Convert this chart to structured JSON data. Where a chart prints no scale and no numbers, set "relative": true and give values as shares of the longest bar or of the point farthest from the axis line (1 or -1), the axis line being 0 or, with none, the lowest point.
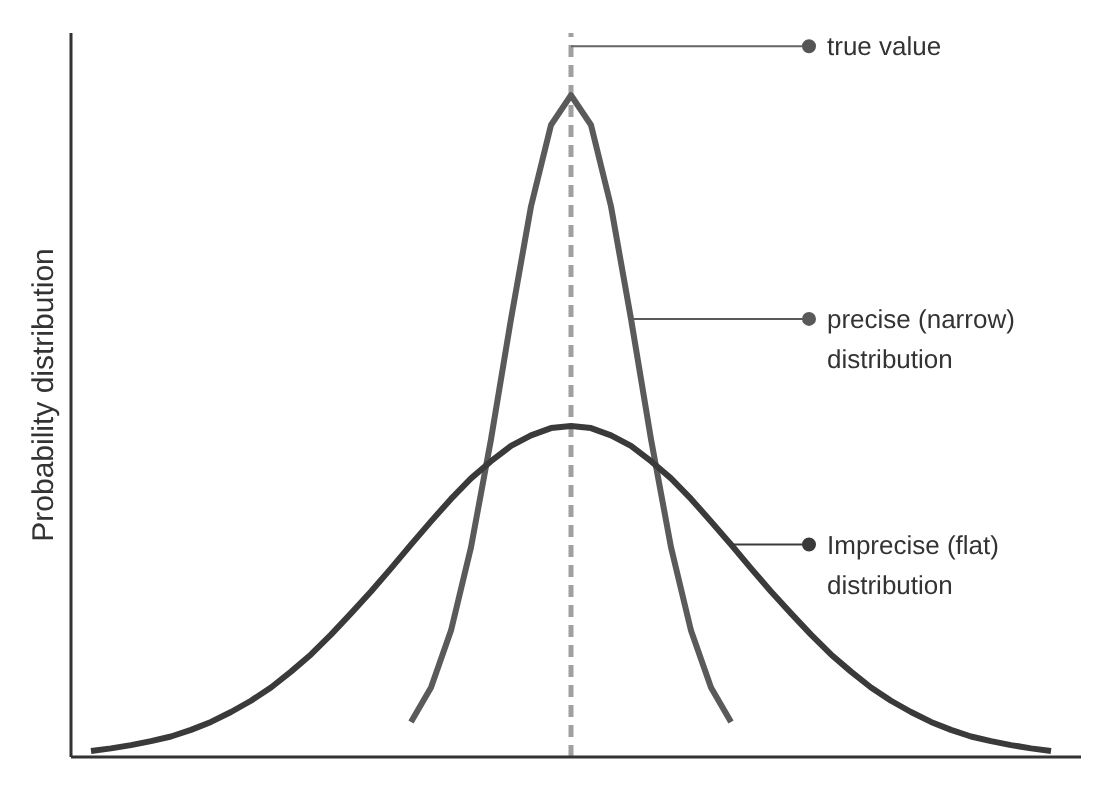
{
  "chart_data": {
    "type": "line",
    "relative": true,
    "ylabel": "Probability distribution",
    "grid": false,
    "legend": "right",
    "marker": "none",
    "line_style": "solid",
    "categories": [
      null,
      null,
      null,
      null,
      null,
      null,
      null,
      null,
      null,
      null,
      null,
      null,
      null,
      null,
      null,
      null,
      null,
      null,
      null,
      null,
      null,
      null,
      null,
      null,
      null,
      null,
      null,
      null,
      null,
      null,
      null,
      null,
      null,
      null,
      null,
      null,
      null,
      null,
      null,
      null,
      null,
      null,
      null,
      null,
      null,
      null,
      null,
      null,
      null
    ],
    "series": [
      {
        "name": "precise (narrow) distribution",
        "color": "#5a5a5a",
        "values": [
          null,
          null,
          null,
          null,
          null,
          null,
          null,
          null,
          null,
          null,
          null,
          null,
          null,
          null,
          null,
          null,
          0.053,
          0.105,
          0.191,
          0.317,
          0.48,
          0.662,
          0.832,
          0.955,
          1,
          0.955,
          0.832,
          0.662,
          0.48,
          0.317,
          0.191,
          0.105,
          0.053,
          null,
          null,
          null,
          null,
          null,
          null,
          null,
          null,
          null,
          null,
          null,
          null,
          null,
          null,
          null,
          null
        ]
      },
      {
        "name": "Imprecise (flat) distribution",
        "color": "#3a3a3a",
        "values": [
          0.009,
          0.013,
          0.018,
          0.024,
          0.031,
          0.041,
          0.053,
          0.068,
          0.085,
          0.105,
          0.129,
          0.155,
          0.185,
          0.217,
          0.25,
          0.285,
          0.321,
          0.356,
          0.39,
          0.421,
          0.447,
          0.47,
          0.486,
          0.497,
          0.5,
          0.497,
          0.486,
          0.47,
          0.447,
          0.421,
          0.39,
          0.356,
          0.321,
          0.285,
          0.25,
          0.217,
          0.185,
          0.155,
          0.129,
          0.105,
          0.085,
          0.068,
          0.053,
          0.041,
          0.031,
          0.024,
          0.018,
          0.013,
          0.009
        ]
      }
    ],
    "annotations": [
      "true value"
    ]
  }
}
